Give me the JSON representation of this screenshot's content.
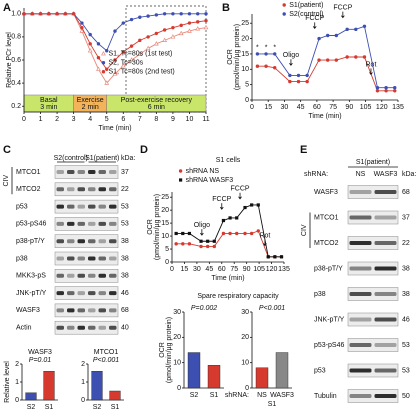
{
  "panel_letters": [
    "A",
    "B",
    "C",
    "D",
    "E"
  ],
  "chart_data": [
    {
      "type": "line",
      "y_label": [
        "Relative PCr level"
      ],
      "x_label": "Time (min)",
      "x": [
        0,
        0.5,
        1,
        1.5,
        2,
        2.5,
        3,
        3.5,
        4,
        4.5,
        5,
        5.5,
        6,
        6.5,
        7,
        7.5,
        8,
        8.5,
        9,
        9.5,
        10,
        10.5,
        11
      ],
      "xlim": [
        0,
        11
      ],
      "xticks": [
        0,
        1,
        2,
        3,
        4,
        5,
        6,
        7,
        8,
        9,
        10,
        11
      ],
      "ylim": [
        0.15,
        1.05
      ],
      "yticks": [
        0.2,
        0.4,
        0.6,
        0.8,
        {
          "value": 1,
          "label": "1.0"
        }
      ],
      "legend": "center",
      "series": [
        {
          "name": "S1, Tc=80s (1st test)",
          "color": "#e8897a",
          "marker": "triangle",
          "values": [
            1,
            1,
            1,
            1,
            1,
            1,
            1,
            0.85,
            0.68,
            0.52,
            0.4,
            0.48,
            0.55,
            0.6,
            0.65,
            0.7,
            0.74,
            0.77,
            0.8,
            0.83,
            0.85,
            0.87,
            0.88
          ]
        },
        {
          "name": "S2, Tc=30s",
          "color": "#3d4fb0",
          "marker": "circle",
          "values": [
            1,
            1,
            1,
            1,
            1,
            1,
            1,
            0.92,
            0.82,
            0.74,
            0.68,
            0.85,
            0.92,
            0.95,
            0.97,
            0.98,
            0.99,
            1,
            1,
            1,
            1,
            1,
            1
          ]
        },
        {
          "name": "S1, Tc=80s (2nd test)",
          "color": "#d63a2f",
          "marker": "circle",
          "values": [
            1,
            1,
            1,
            1,
            1,
            1,
            1,
            0.88,
            0.74,
            0.62,
            0.52,
            0.6,
            0.67,
            0.72,
            0.77,
            0.8,
            0.83,
            0.86,
            0.88,
            0.9,
            0.92,
            0.93,
            0.94
          ]
        }
      ],
      "phases": [
        {
          "label": "Basal",
          "duration": "3 min",
          "start": 0,
          "end": 3,
          "color": "#c9e66b"
        },
        {
          "label": "Exercise",
          "duration": "2 min",
          "start": 3,
          "end": 5,
          "color": "#f2b35a"
        },
        {
          "label": "Post-exercise recovery",
          "duration": "6 min",
          "start": 5,
          "end": 11,
          "color": "#c9e66b"
        }
      ]
    },
    {
      "type": "line",
      "y_label": [
        "OCR",
        "(pmol/min/µg protein)"
      ],
      "x_label": "Time (min)",
      "x": [
        5,
        13,
        21,
        35,
        43,
        51,
        62,
        70,
        78,
        88,
        96,
        104,
        116,
        124,
        132
      ],
      "xlim": [
        0,
        135
      ],
      "xticks": [
        0,
        15,
        30,
        45,
        60,
        75,
        90,
        105,
        120,
        135
      ],
      "ylim": [
        0,
        28
      ],
      "yticks": [
        0,
        5,
        10,
        15,
        20,
        25
      ],
      "legend": "top",
      "series": [
        {
          "name": "S1(patient)",
          "color": "#d63a2f",
          "marker": "circle",
          "values": [
            11,
            11,
            10.5,
            6,
            6,
            6,
            13,
            13,
            13,
            14,
            14,
            14,
            3,
            3,
            3
          ]
        },
        {
          "name": "S2(control)",
          "color": "#3d4fb0",
          "marker": "circle",
          "values": [
            15,
            15,
            15,
            8,
            8,
            8,
            20,
            21,
            21,
            23,
            23,
            24,
            4,
            4,
            4
          ]
        }
      ],
      "annotations": [
        {
          "text": "Oligo",
          "x": 36,
          "y": 11
        },
        {
          "text": "FCCP",
          "x": 58,
          "y": 23
        },
        {
          "text": "FCCP",
          "x": 84,
          "y": 26.5
        },
        {
          "text": "Rot",
          "x": 110,
          "y": 8
        }
      ],
      "stars": {
        "label": "*",
        "x": [
          5,
          13,
          21
        ],
        "y": 17
      }
    },
    {
      "type": "bar",
      "title": "WASF3",
      "annotation": "P=0.01",
      "y_label": [
        "Relative level"
      ],
      "categories": [
        "S2",
        "S1"
      ],
      "values": [
        0.4,
        1.6
      ],
      "colors": [
        "#3d4fb0",
        "#d63a2f"
      ],
      "ylim": [
        0,
        2
      ],
      "yticks": [
        0,
        1,
        2
      ]
    },
    {
      "type": "bar",
      "title": "MTCO1",
      "annotation": "P<0.001",
      "categories": [
        "S2",
        "S1"
      ],
      "values": [
        1.6,
        0.5
      ],
      "colors": [
        "#3d4fb0",
        "#d63a2f"
      ],
      "ylim": [
        0,
        2
      ],
      "yticks": [
        0,
        1,
        2
      ]
    },
    {
      "type": "line",
      "title": "S1 cells",
      "y_label": [
        "OCR",
        "(pmol/min/µg protein)"
      ],
      "x_label": "Time (min)",
      "x": [
        5,
        13,
        21,
        35,
        43,
        51,
        62,
        70,
        78,
        88,
        96,
        104,
        116,
        124,
        132
      ],
      "xlim": [
        0,
        135
      ],
      "xticks": [
        0,
        15,
        30,
        45,
        60,
        75,
        90,
        105,
        120,
        135
      ],
      "ylim": [
        0,
        27
      ],
      "yticks": [
        0,
        5,
        10,
        15,
        20,
        25
      ],
      "legend": "above",
      "series": [
        {
          "name": "shRNA NS",
          "color": "#d63a2f",
          "marker": "circle",
          "values": [
            7,
            7,
            7,
            6,
            6,
            6,
            11,
            11,
            11,
            11,
            11,
            12,
            2,
            2,
            2
          ]
        },
        {
          "name": "shRNA WASF3",
          "color": "#111111",
          "marker": "square",
          "values": [
            11,
            11,
            11,
            8,
            8,
            8,
            16,
            17,
            17,
            21,
            22,
            22,
            2,
            2,
            2
          ]
        }
      ],
      "annotations": [
        {
          "text": "Oligo",
          "x": 36,
          "y": 10
        },
        {
          "text": "FCCP",
          "x": 60,
          "y": 20
        },
        {
          "text": "FCCP",
          "x": 82,
          "y": 24
        },
        {
          "text": "Rot",
          "x": 112,
          "y": 6
        }
      ]
    },
    {
      "type": "bar",
      "title": "Spare respiratory capacity",
      "annotation": "P=0.002",
      "y_label": [
        "OCR",
        "(pmol/min/µg protein)"
      ],
      "categories": [
        "S2",
        "S1"
      ],
      "values": [
        14,
        9
      ],
      "colors": [
        "#3d4fb0",
        "#d63a2f"
      ],
      "ylim": [
        0,
        30
      ],
      "yticks": [
        0,
        10,
        20,
        30
      ]
    },
    {
      "type": "bar",
      "annotation": "P<0.001",
      "x_prefix": "shRNA:",
      "group": "S1",
      "categories": [
        "NS",
        "WASF3"
      ],
      "values": [
        8,
        14
      ],
      "colors": [
        "#d63a2f",
        "#888888"
      ],
      "ylim": [
        0,
        30
      ],
      "yticks": [
        0,
        10,
        20,
        30
      ]
    }
  ],
  "blots": [
    {
      "header_groups": [
        "S2(control)",
        "S1(patient)"
      ],
      "kda_label": "kDa:",
      "civ_label": "CIV",
      "rows": [
        {
          "label": "MTCO1",
          "kda": 37
        },
        {
          "label": "MTCO2",
          "kda": 22
        },
        {
          "label": "p53",
          "kda": 53
        },
        {
          "label": "p53-pS46",
          "kda": 53
        },
        {
          "label": "p38-pT/Y",
          "kda": 38
        },
        {
          "label": "p38",
          "kda": 38
        },
        {
          "label": "MKK3-pS",
          "kda": 38
        },
        {
          "label": "JNK-pT/Y",
          "kda": 46
        },
        {
          "label": "WASF3",
          "kda": 68
        },
        {
          "label": "Actin",
          "kda": 40
        }
      ]
    },
    {
      "prefix": "shRNA:",
      "group": "S1(patient)",
      "lanes": [
        "NS",
        "WASF3"
      ],
      "kda_label": "kDa:",
      "civ_label": "CIV",
      "rows": [
        {
          "label": "WASF3",
          "kda": 68
        },
        {
          "label": "MTCO1",
          "kda": 37
        },
        {
          "label": "MTCO2",
          "kda": 22
        },
        {
          "label": "p38-pT/Y",
          "kda": 38
        },
        {
          "label": "p38",
          "kda": 38
        },
        {
          "label": "JNK-pT/Y",
          "kda": 46
        },
        {
          "label": "p53-pS46",
          "kda": 53
        },
        {
          "label": "p53",
          "kda": 53
        },
        {
          "label": "Tubulin",
          "kda": 50
        }
      ]
    }
  ]
}
